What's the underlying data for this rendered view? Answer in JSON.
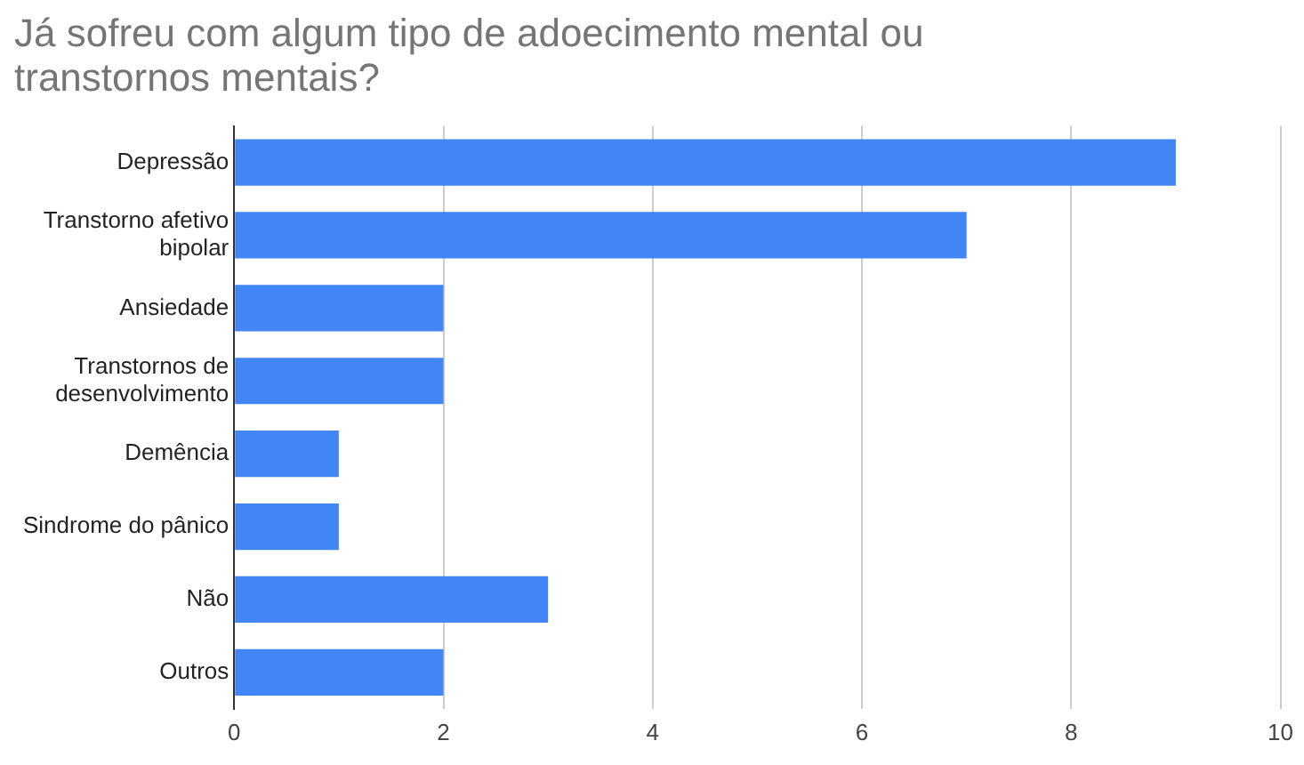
{
  "chart_data": {
    "type": "bar",
    "orientation": "horizontal",
    "title": "Já sofreu com algum tipo de adoecimento mental ou transtornos mentais?",
    "categories": [
      "Depressão",
      "Transtorno afetivo bipolar",
      "Ansiedade",
      "Transtornos de desenvolvimento",
      "Demência",
      "Sindrome do pânico",
      "Não",
      "Outros"
    ],
    "values": [
      9,
      7,
      2,
      2,
      1,
      1,
      3,
      2
    ],
    "color": "#4285f4",
    "xlim": [
      0,
      10
    ],
    "xticks": [
      0,
      2,
      4,
      6,
      8,
      10
    ],
    "grid": "x",
    "legend": false
  }
}
